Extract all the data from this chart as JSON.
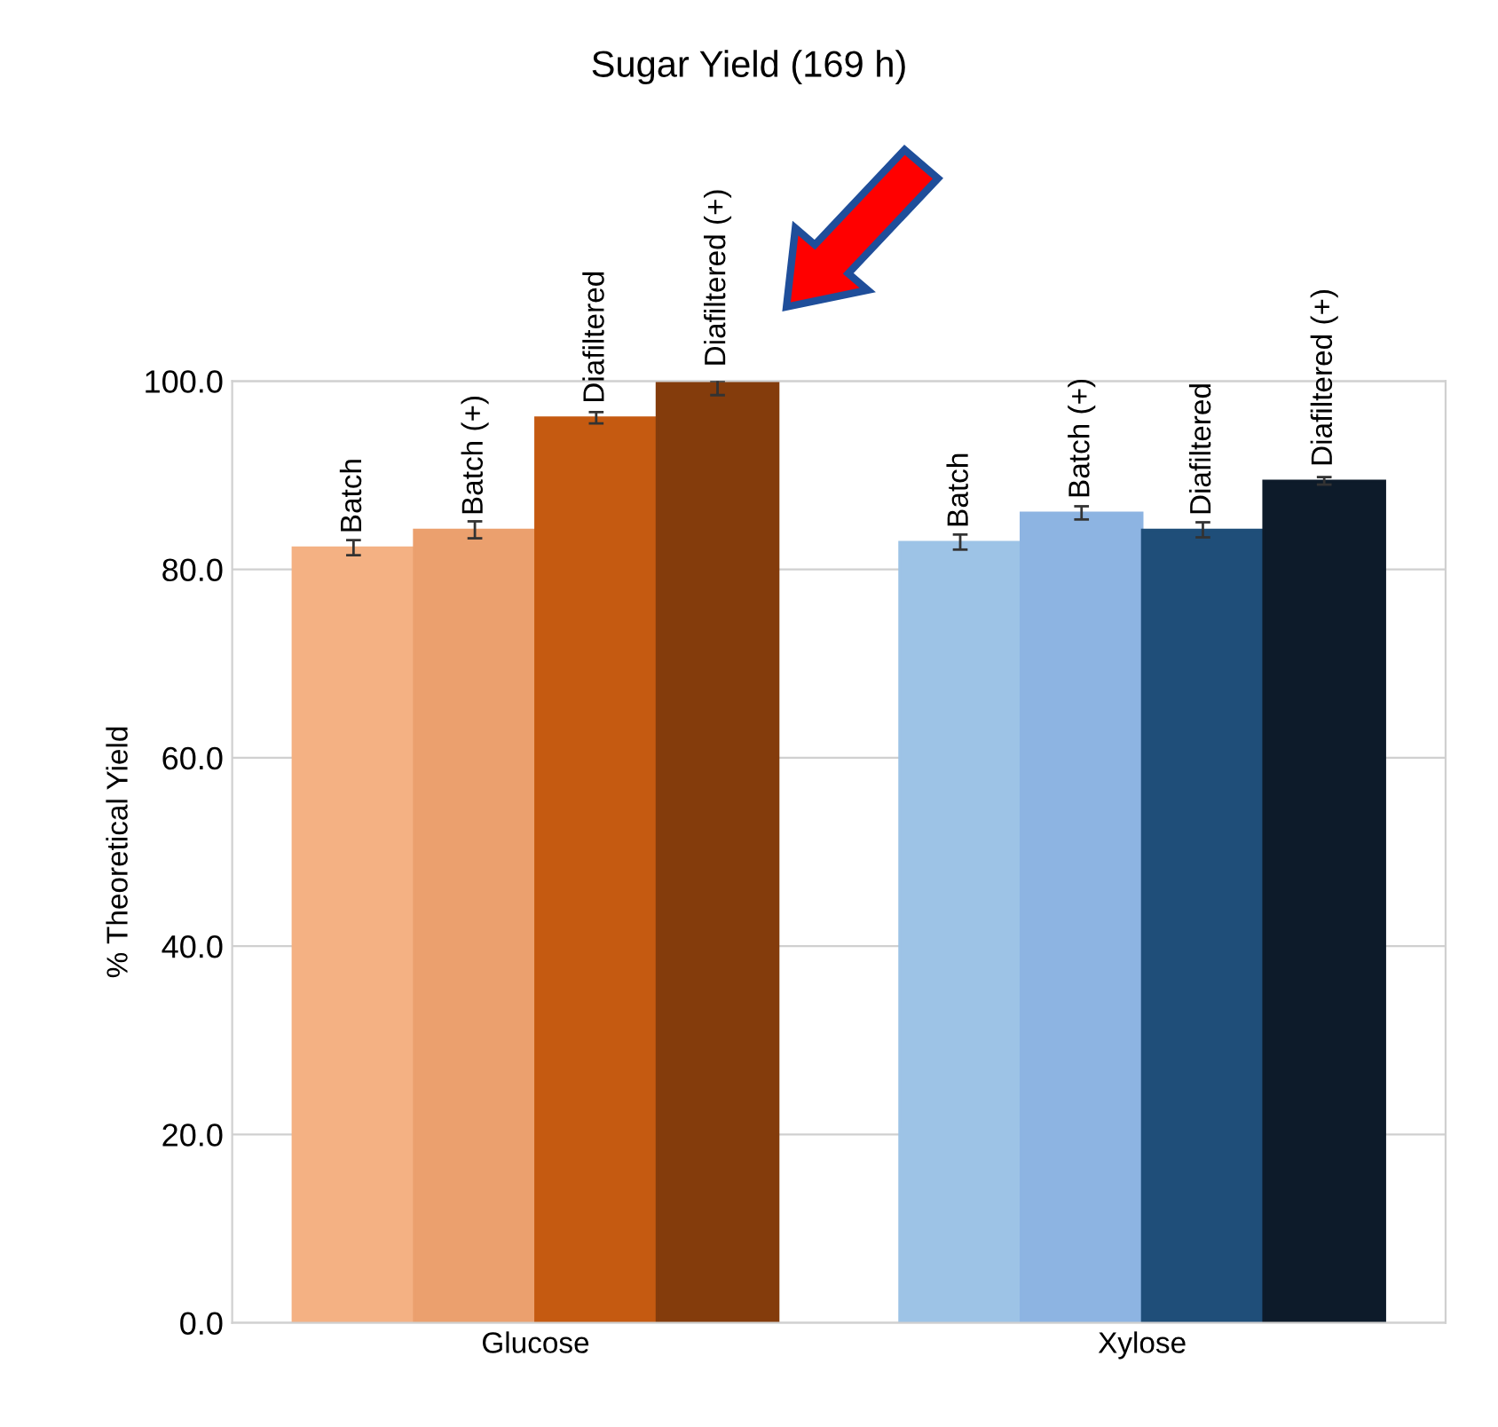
{
  "chart_data": {
    "type": "bar",
    "title": "Sugar Yield (169 h)",
    "ylabel": "% Theoretical Yield",
    "categories": [
      "Glucose",
      "Xylose"
    ],
    "series": [
      {
        "name": "Batch",
        "colors": [
          "#f4b183",
          "#9dc3e6"
        ],
        "values": [
          82.3,
          82.9
        ],
        "errors": [
          0.8,
          0.8
        ]
      },
      {
        "name": "Batch (+)",
        "colors": [
          "#eba06e",
          "#8db4e2"
        ],
        "values": [
          84.2,
          86.0
        ],
        "errors": [
          0.9,
          0.7
        ]
      },
      {
        "name": "Diafiltered",
        "colors": [
          "#c55a11",
          "#1f4e79"
        ],
        "values": [
          96.1,
          84.2
        ],
        "errors": [
          0.6,
          0.8
        ]
      },
      {
        "name": "Diafiltered (+)",
        "colors": [
          "#843c0c",
          "#0d1b2a"
        ],
        "values": [
          100.0,
          89.4
        ],
        "errors": [
          [
            98.5,
            100.0
          ],
          0.4
        ]
      }
    ],
    "ylim": [
      0,
      100
    ],
    "yticks": [
      {
        "value": 0,
        "label": "0.0"
      },
      {
        "value": 20,
        "label": "20.0"
      },
      {
        "value": 40,
        "label": "40.0"
      },
      {
        "value": 60,
        "label": "60.0"
      },
      {
        "value": 80,
        "label": "80.0"
      },
      {
        "value": 100,
        "label": "100.0"
      }
    ],
    "grid": "y"
  }
}
